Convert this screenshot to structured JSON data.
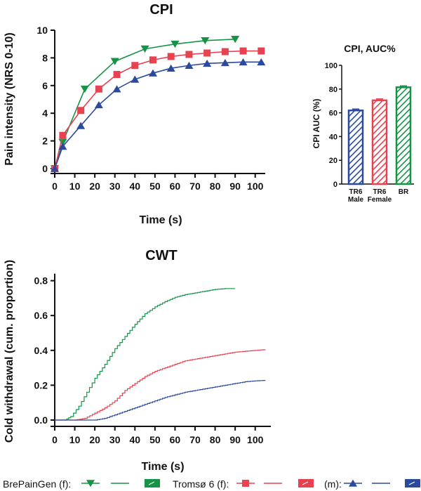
{
  "colors": {
    "green": "#159447",
    "red": "#e8414f",
    "blue": "#2b4a9e",
    "axis": "#111111"
  },
  "chart_data": [
    {
      "id": "cpi",
      "type": "line",
      "title": "CPI",
      "xlabel": "Time (s)",
      "ylabel": "Pain intensity (NRS 0-10)",
      "xlim": [
        0,
        105
      ],
      "ylim": [
        0,
        10
      ],
      "xticks": [
        "0",
        "10",
        "20",
        "30",
        "40",
        "50",
        "60",
        "70",
        "80",
        "90",
        "100"
      ],
      "yticks": [
        "0",
        "2",
        "4",
        "6",
        "8",
        "10"
      ],
      "series": [
        {
          "name": "BrePainGen (f)",
          "color": "green",
          "marker": "triangle-down",
          "x": [
            0,
            4,
            15,
            30,
            45,
            60,
            75,
            90
          ],
          "y": [
            0,
            1.9,
            5.75,
            7.75,
            8.65,
            9.0,
            9.25,
            9.35
          ]
        },
        {
          "name": "Tromsø 6 (f)",
          "color": "red",
          "marker": "square",
          "x": [
            0,
            4,
            13,
            22,
            31,
            40,
            49,
            58,
            67,
            76,
            85,
            94,
            103
          ],
          "y": [
            0,
            2.4,
            4.2,
            5.75,
            6.8,
            7.45,
            7.85,
            8.1,
            8.25,
            8.35,
            8.45,
            8.5,
            8.5
          ]
        },
        {
          "name": "Tromsø 6 (m)",
          "color": "blue",
          "marker": "triangle-up",
          "x": [
            0,
            4,
            13,
            22,
            31,
            40,
            49,
            58,
            67,
            76,
            85,
            94,
            103
          ],
          "y": [
            0,
            1.6,
            3.1,
            4.6,
            5.75,
            6.45,
            6.9,
            7.25,
            7.45,
            7.6,
            7.65,
            7.7,
            7.7
          ]
        }
      ]
    },
    {
      "id": "auc",
      "type": "bar",
      "title": "CPI, AUC%",
      "ylabel": "CPI  AUC (%)",
      "ylim": [
        0,
        100
      ],
      "yticks": [
        "0",
        "20",
        "40",
        "60",
        "80",
        "100"
      ],
      "categories": [
        [
          "TR6",
          "Male"
        ],
        [
          "TR6",
          "Female"
        ],
        [
          "BR"
        ]
      ],
      "values": [
        62,
        70.5,
        81.5
      ],
      "colors": [
        "blue",
        "red",
        "green"
      ]
    },
    {
      "id": "cwt",
      "type": "line",
      "title": "CWT",
      "xlabel": "Time  (s)",
      "ylabel": "Cold withdrawal (cum. proportion)",
      "xlim": [
        0,
        105
      ],
      "ylim": [
        0,
        0.85
      ],
      "xticks": [
        "0",
        "10",
        "20",
        "30",
        "40",
        "50",
        "60",
        "70",
        "80",
        "90",
        "100"
      ],
      "yticks": [
        "0.0",
        "0.2",
        "0.4",
        "0.6",
        "0.8"
      ],
      "series": [
        {
          "name": "BrePainGen (f)",
          "color": "green",
          "x": [
            0,
            5,
            8,
            12,
            16,
            20,
            25,
            30,
            35,
            40,
            45,
            50,
            55,
            60,
            65,
            70,
            75,
            80,
            85,
            90
          ],
          "y": [
            0,
            0,
            0.02,
            0.08,
            0.16,
            0.24,
            0.32,
            0.41,
            0.48,
            0.55,
            0.61,
            0.65,
            0.68,
            0.705,
            0.72,
            0.73,
            0.74,
            0.75,
            0.755,
            0.755
          ]
        },
        {
          "name": "Tromsø 6 (f)",
          "color": "red",
          "x": [
            0,
            10,
            15,
            20,
            25,
            30,
            35,
            40,
            45,
            50,
            55,
            60,
            65,
            70,
            75,
            80,
            85,
            90,
            95,
            100,
            105
          ],
          "y": [
            0,
            0,
            0.01,
            0.04,
            0.07,
            0.11,
            0.17,
            0.21,
            0.25,
            0.28,
            0.3,
            0.32,
            0.34,
            0.35,
            0.36,
            0.37,
            0.38,
            0.39,
            0.395,
            0.4,
            0.405
          ]
        },
        {
          "name": "Tromsø 6 (m)",
          "color": "blue",
          "x": [
            0,
            20,
            25,
            30,
            35,
            40,
            45,
            50,
            55,
            60,
            65,
            70,
            75,
            80,
            85,
            90,
            95,
            100,
            105
          ],
          "y": [
            0,
            0,
            0.01,
            0.03,
            0.05,
            0.07,
            0.09,
            0.11,
            0.13,
            0.145,
            0.16,
            0.17,
            0.18,
            0.19,
            0.2,
            0.21,
            0.22,
            0.225,
            0.228
          ]
        }
      ]
    }
  ],
  "legend": {
    "brepaingen": "BrePainGen (f):",
    "tromso_f": "Tromsø 6 (f):",
    "tromso_m": "(m):"
  }
}
